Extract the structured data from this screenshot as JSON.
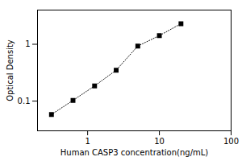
{
  "chart_data": {
    "type": "line",
    "x": [
      0.313,
      0.625,
      1.25,
      2.5,
      5,
      10,
      20
    ],
    "values": [
      0.058,
      0.103,
      0.185,
      0.35,
      0.93,
      1.42,
      2.3
    ],
    "xlabel": "Human CASP3 concentration(ng/mL)",
    "ylabel": "Optical Density",
    "log": true,
    "xlim": [
      0.2,
      100
    ],
    "ylim": [
      0.03,
      4
    ],
    "xticks": [
      1,
      10,
      100
    ],
    "yticks": [
      0.1,
      1
    ],
    "color": "black",
    "marker": "square",
    "line_style": "dotted",
    "grid": false
  }
}
